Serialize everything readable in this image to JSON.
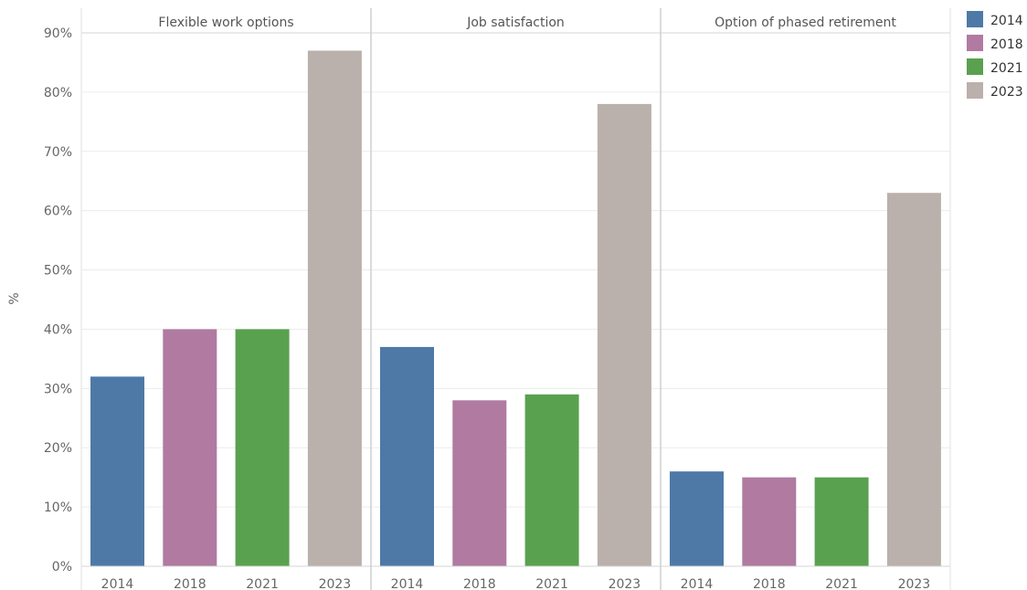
{
  "chart_data": {
    "type": "bar",
    "ylabel": "%",
    "ylim": [
      0,
      90
    ],
    "yticks": [
      "0%",
      "10%",
      "20%",
      "30%",
      "40%",
      "50%",
      "60%",
      "70%",
      "80%",
      "90%"
    ],
    "ytick_values": [
      0,
      10,
      20,
      30,
      40,
      50,
      60,
      70,
      80,
      90
    ],
    "categories": [
      "2014",
      "2018",
      "2021",
      "2023"
    ],
    "panels": [
      {
        "title": "Flexible work options",
        "values": [
          32,
          40,
          40,
          87
        ]
      },
      {
        "title": "Job satisfaction",
        "values": [
          37,
          28,
          29,
          78
        ]
      },
      {
        "title": "Option of phased retirement",
        "values": [
          16,
          15,
          15,
          63
        ]
      }
    ],
    "legend": {
      "position": "top-right",
      "items": [
        {
          "label": "2014",
          "color": "#4e79a7"
        },
        {
          "label": "2018",
          "color": "#b07aa1"
        },
        {
          "label": "2021",
          "color": "#59a14f"
        },
        {
          "label": "2023",
          "color": "#bab0ac"
        }
      ]
    },
    "grid": true
  }
}
